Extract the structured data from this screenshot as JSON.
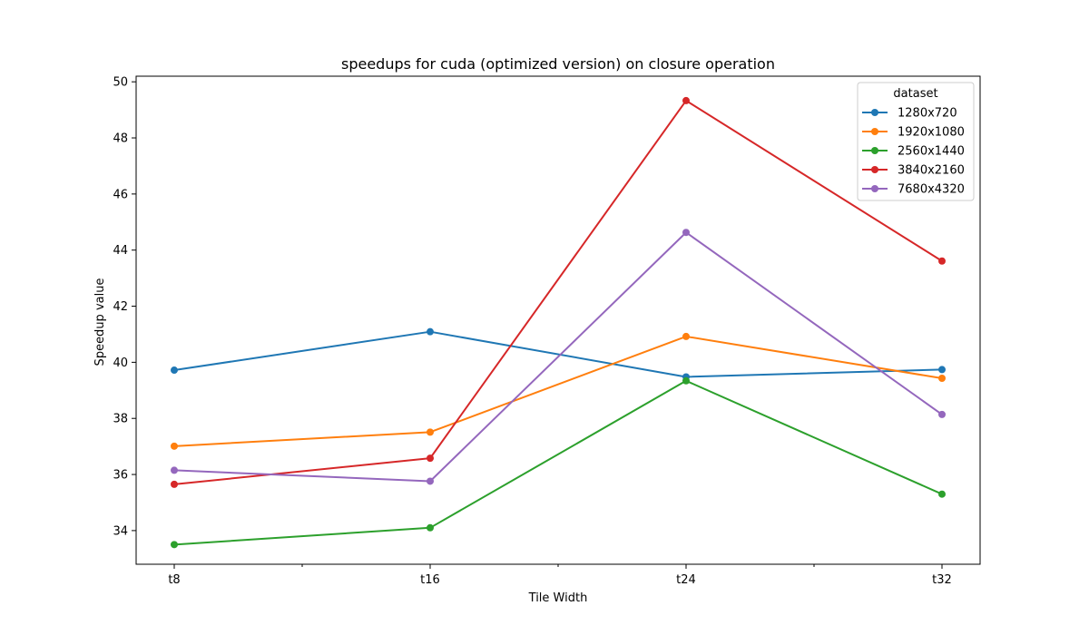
{
  "chart_data": {
    "type": "line",
    "title": "speedups for cuda (optimized version) on closure operation",
    "xlabel": "Tile Width",
    "ylabel": "Speedup value",
    "categories": [
      "t8",
      "t16",
      "t24",
      "t32"
    ],
    "ylim": [
      32.8,
      50.2
    ],
    "yticks": [
      34,
      36,
      38,
      40,
      42,
      44,
      46,
      48,
      50
    ],
    "grid": false,
    "legend": {
      "title": "dataset",
      "placement": "top-right"
    },
    "series": [
      {
        "name": "1280x720",
        "color": "#1f77b4",
        "values": [
          39.72,
          41.09,
          39.48,
          39.74
        ]
      },
      {
        "name": "1920x1080",
        "color": "#ff7f0e",
        "values": [
          37.01,
          37.51,
          40.92,
          39.43
        ]
      },
      {
        "name": "2560x1440",
        "color": "#2ca02c",
        "values": [
          33.5,
          34.1,
          39.34,
          35.3
        ]
      },
      {
        "name": "3840x2160",
        "color": "#d62728",
        "values": [
          35.65,
          36.58,
          49.33,
          43.61
        ]
      },
      {
        "name": "7680x4320",
        "color": "#9467bd",
        "values": [
          36.15,
          35.76,
          44.63,
          38.14
        ]
      }
    ]
  }
}
